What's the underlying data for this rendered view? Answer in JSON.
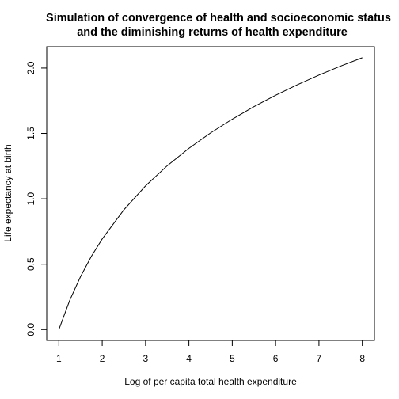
{
  "chart_data": {
    "type": "line",
    "title": "Simulation of convergence of health and socioeconomic status",
    "subtitle": "and the diminishing returns of health expenditure",
    "xlabel": "Log of per capita total health expenditure",
    "ylabel": "Life expectancy at birth",
    "xlim": [
      0.72,
      8.28
    ],
    "ylim": [
      -0.083,
      2.163
    ],
    "xticks": [
      1,
      2,
      3,
      4,
      5,
      6,
      7,
      8
    ],
    "xtick_labels": [
      "1",
      "2",
      "3",
      "4",
      "5",
      "6",
      "7",
      "8"
    ],
    "yticks": [
      0.0,
      0.5,
      1.0,
      1.5,
      2.0
    ],
    "ytick_labels": [
      "0.0",
      "0.5",
      "1.0",
      "1.5",
      "2.0"
    ],
    "grid": false,
    "legend": "none",
    "series": [
      {
        "x": [
          1.0,
          1.25,
          1.5,
          1.75,
          2.0,
          2.5,
          3.0,
          3.5,
          4.0,
          4.5,
          5.0,
          5.5,
          6.0,
          6.5,
          7.0,
          7.5,
          8.0
        ],
        "y": [
          0.0,
          0.223,
          0.405,
          0.56,
          0.693,
          0.916,
          1.099,
          1.253,
          1.386,
          1.504,
          1.609,
          1.705,
          1.792,
          1.872,
          1.946,
          2.015,
          2.079
        ]
      }
    ]
  }
}
